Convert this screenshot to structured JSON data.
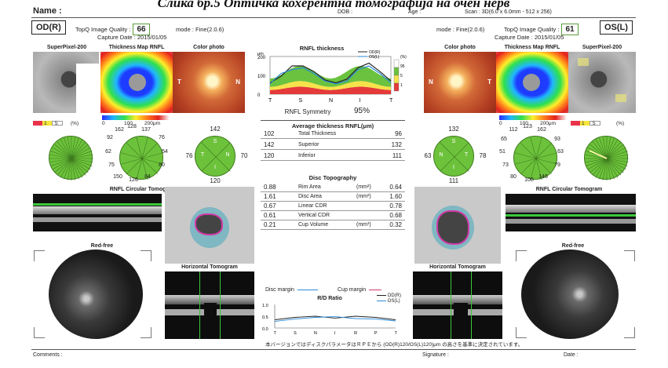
{
  "header": {
    "caption": "Слика бр.5 Оптичка кохерентна томографија на очен нерв",
    "name_label": "Name :",
    "dob_label": "DOB :",
    "age_label": "Age :",
    "scan": "Scan : 3D(6.0 x 6.0mm - 512 x 256)"
  },
  "od": {
    "eye_label": "OD(R)",
    "quality_label": "TopQ Image Quality :",
    "quality_value": "66",
    "mode": "mode : Fine(2.0.6)",
    "capture": "Capture Date : 2015/01/05",
    "superpixel_title": "SuperPixel-200",
    "thickness_title": "Thickness Map RNFL",
    "color_title": "Color photo",
    "photo_t": "T",
    "photo_n": "N",
    "sp_ticks": [
      "1",
      "5",
      "(%)"
    ],
    "tm_ticks": [
      "0",
      "100",
      "200μm"
    ],
    "clock": [
      "162",
      "128",
      "137",
      "92",
      "76",
      "62",
      "54",
      "75",
      "80",
      "150",
      "126",
      "84"
    ],
    "quad": {
      "s": "142",
      "t": "76",
      "n": "70",
      "i": "120",
      "S": "S",
      "T": "T",
      "N": "N",
      "I": "I"
    },
    "circ_title": "RNFL Circular Tomogram",
    "redfree_title": "Red-free",
    "htomo_title": "Horizontal Tomogram"
  },
  "os": {
    "eye_label": "OS(L)",
    "quality_label": "TopQ Image Quality :",
    "quality_value": "61",
    "mode": "mode : Fine(2.0.6)",
    "capture": "Capture Date : 2015/01/05",
    "superpixel_title": "SuperPixel-200",
    "thickness_title": "Thickness Map RNFL",
    "color_title": "Color photo",
    "photo_t": "T",
    "photo_n": "N",
    "sp_ticks": [
      "1",
      "5",
      "(%)"
    ],
    "tm_ticks": [
      "0",
      "100",
      "200μm"
    ],
    "clock": [
      "112",
      "123",
      "162",
      "65",
      "93",
      "51",
      "63",
      "73",
      "79",
      "80",
      "108",
      "146"
    ],
    "quad": {
      "s": "132",
      "t": "78",
      "n": "63",
      "i": "111",
      "S": "S",
      "T": "T",
      "N": "N",
      "I": "I"
    },
    "circ_title": "RNFL Circular Tomogram",
    "redfree_title": "Red-free",
    "htomo_title": "Horizontal Tomogram"
  },
  "rnfl_chart": {
    "title": "RNFL thickness",
    "unit_top": "μm",
    "y_ticks": [
      "200",
      "100",
      "0"
    ],
    "x_ticks": [
      "T",
      "S",
      "N",
      "I",
      "T"
    ],
    "legend": [
      {
        "name": "OD(R)",
        "color": "#222222"
      },
      {
        "name": "OS(L)",
        "color": "#2a8ad8"
      }
    ],
    "pct_scale": [
      "(%)",
      "95",
      "5",
      "1"
    ],
    "symmetry_label": "RNFL Symmetry",
    "symmetry_value": "95%",
    "od_values": [
      60,
      95,
      150,
      150,
      120,
      75,
      60,
      80,
      140,
      165,
      120,
      70
    ],
    "os_values": [
      55,
      110,
      130,
      140,
      110,
      70,
      55,
      70,
      130,
      150,
      110,
      60
    ]
  },
  "avg_thickness": {
    "title": "Average thickness RNFL(μm)",
    "rows": [
      {
        "od": "102",
        "label": "Total Thickness",
        "os": "96"
      },
      {
        "od": "142",
        "label": "Superior",
        "os": "132"
      },
      {
        "od": "120",
        "label": "Inferior",
        "os": "111"
      }
    ]
  },
  "disc": {
    "title": "Disc Topography",
    "rows": [
      {
        "od": "0.88",
        "label": "Rim Area",
        "unit": "(mm²)",
        "os": "0.64"
      },
      {
        "od": "1.61",
        "label": "Disc Area",
        "unit": "(mm²)",
        "os": "1.60"
      },
      {
        "od": "0.67",
        "label": "Linear CDR",
        "unit": "",
        "os": "0.78"
      },
      {
        "od": "0.61",
        "label": "Vertical CDR",
        "unit": "",
        "os": "0.68"
      },
      {
        "od": "0.21",
        "label": "Cup Volume",
        "unit": "(mm³)",
        "os": "0.32"
      }
    ]
  },
  "rd_chart": {
    "disc_margin": "Disc margin",
    "cup_margin": "Cup margin",
    "title": "R/D Ratio",
    "legend": [
      "OD(R)",
      "OS(L)"
    ],
    "y_ticks": [
      "1.0",
      "0.5",
      "0.0"
    ],
    "x_ticks": [
      "T",
      "S",
      "N",
      "I",
      "R",
      "P",
      "T"
    ]
  },
  "footer": {
    "note": "本バージョンではディスクパラメータはＲＰＥから (OD(R)120/OS(L)120)μm の高さを基準に決定されています。",
    "comments": "Comments :",
    "signature": "Signature :",
    "date": "Date :"
  },
  "colors": {
    "green": "#6dc23b",
    "quality_border": "#5a9a3a",
    "cup_outline": "#d13aa8"
  }
}
